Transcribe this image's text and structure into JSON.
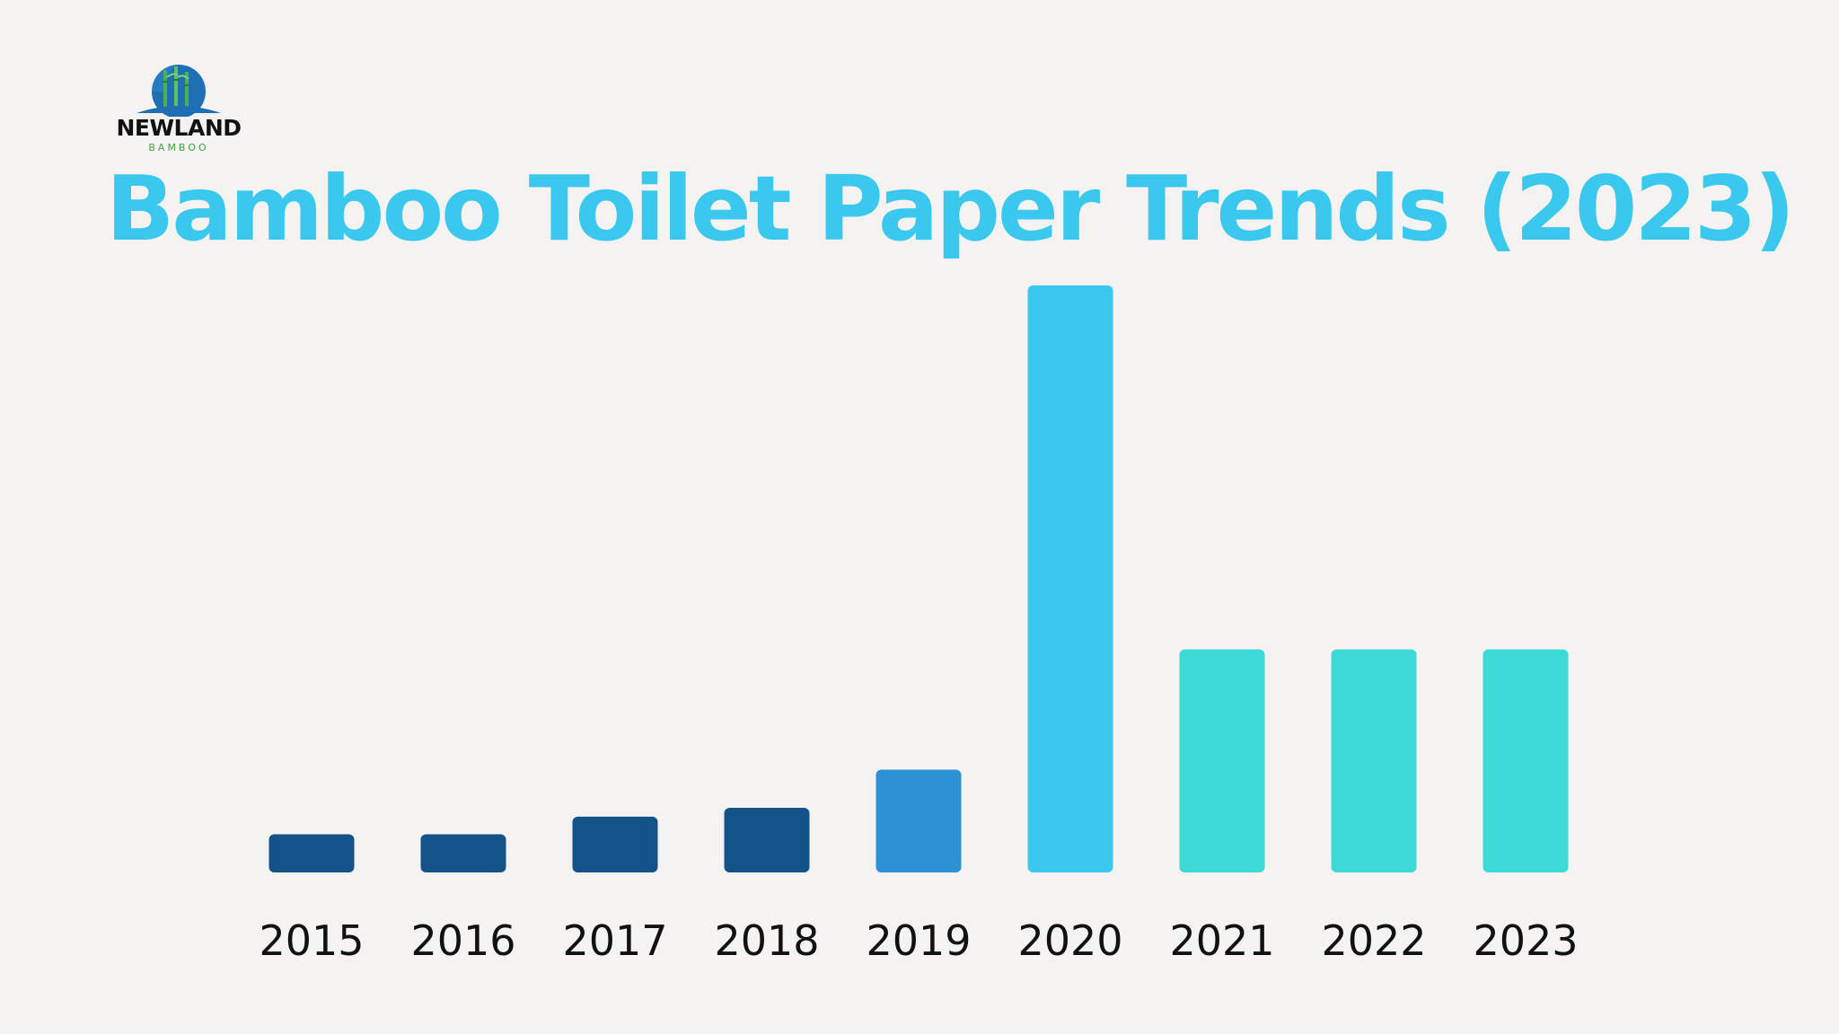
{
  "brand": {
    "name": "NEWLAND",
    "tagline": "BAMBOO",
    "colors": {
      "globe": "#1f6fb5",
      "bamboo": "#4caf50"
    }
  },
  "chart_data": {
    "type": "bar",
    "title": "Bamboo Toilet Paper Trends (2023)",
    "xlabel": "",
    "ylabel": "",
    "categories": [
      "2015",
      "2016",
      "2017",
      "2018",
      "2019",
      "2020",
      "2021",
      "2022",
      "2023"
    ],
    "values": [
      6.5,
      6.5,
      9.5,
      11,
      17.5,
      100,
      38,
      38,
      38
    ],
    "colors": [
      "#13538a",
      "#13538a",
      "#13538a",
      "#13538a",
      "#2d91d6",
      "#3ac8ee",
      "#3dd9d6",
      "#3dd9d6",
      "#3dd9d6"
    ],
    "ylim": [
      0,
      100
    ],
    "grid": false,
    "legend": "none"
  }
}
